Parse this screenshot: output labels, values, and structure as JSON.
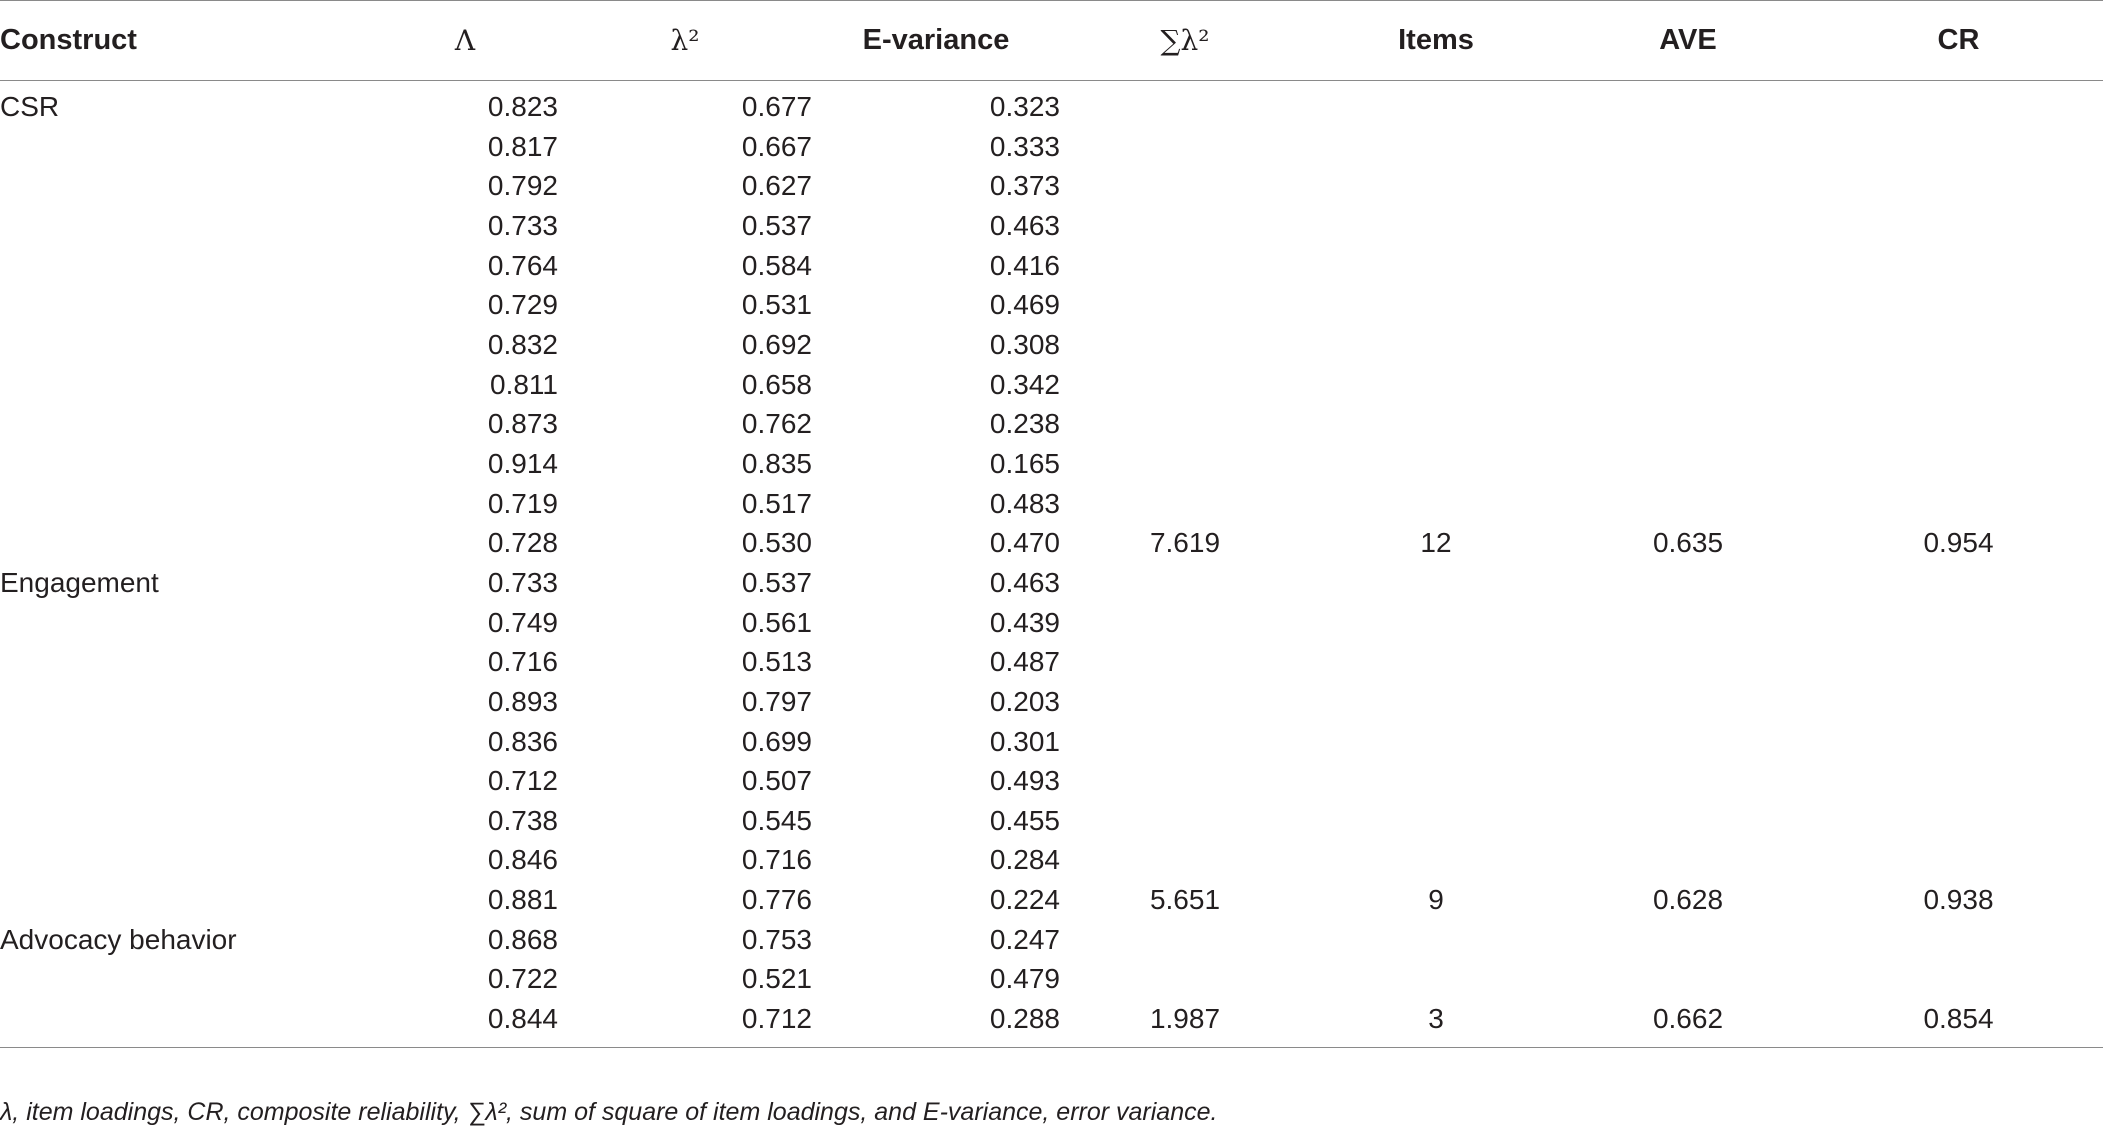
{
  "table": {
    "headers": [
      "Construct",
      "Λ",
      "λ²",
      "E-variance",
      "∑λ²",
      "Items",
      "AVE",
      "CR"
    ],
    "rows": [
      {
        "construct": "CSR",
        "lambda": "0.823",
        "lambda_sq": "0.677",
        "e_variance": "0.323",
        "sum_lambda_sq": "",
        "items": "",
        "ave": "",
        "cr": ""
      },
      {
        "construct": "",
        "lambda": "0.817",
        "lambda_sq": "0.667",
        "e_variance": "0.333",
        "sum_lambda_sq": "",
        "items": "",
        "ave": "",
        "cr": ""
      },
      {
        "construct": "",
        "lambda": "0.792",
        "lambda_sq": "0.627",
        "e_variance": "0.373",
        "sum_lambda_sq": "",
        "items": "",
        "ave": "",
        "cr": ""
      },
      {
        "construct": "",
        "lambda": "0.733",
        "lambda_sq": "0.537",
        "e_variance": "0.463",
        "sum_lambda_sq": "",
        "items": "",
        "ave": "",
        "cr": ""
      },
      {
        "construct": "",
        "lambda": "0.764",
        "lambda_sq": "0.584",
        "e_variance": "0.416",
        "sum_lambda_sq": "",
        "items": "",
        "ave": "",
        "cr": ""
      },
      {
        "construct": "",
        "lambda": "0.729",
        "lambda_sq": "0.531",
        "e_variance": "0.469",
        "sum_lambda_sq": "",
        "items": "",
        "ave": "",
        "cr": ""
      },
      {
        "construct": "",
        "lambda": "0.832",
        "lambda_sq": "0.692",
        "e_variance": "0.308",
        "sum_lambda_sq": "",
        "items": "",
        "ave": "",
        "cr": ""
      },
      {
        "construct": "",
        "lambda": "0.811",
        "lambda_sq": "0.658",
        "e_variance": "0.342",
        "sum_lambda_sq": "",
        "items": "",
        "ave": "",
        "cr": ""
      },
      {
        "construct": "",
        "lambda": "0.873",
        "lambda_sq": "0.762",
        "e_variance": "0.238",
        "sum_lambda_sq": "",
        "items": "",
        "ave": "",
        "cr": ""
      },
      {
        "construct": "",
        "lambda": "0.914",
        "lambda_sq": "0.835",
        "e_variance": "0.165",
        "sum_lambda_sq": "",
        "items": "",
        "ave": "",
        "cr": ""
      },
      {
        "construct": "",
        "lambda": "0.719",
        "lambda_sq": "0.517",
        "e_variance": "0.483",
        "sum_lambda_sq": "",
        "items": "",
        "ave": "",
        "cr": ""
      },
      {
        "construct": "",
        "lambda": "0.728",
        "lambda_sq": "0.530",
        "e_variance": "0.470",
        "sum_lambda_sq": "7.619",
        "items": "12",
        "ave": "0.635",
        "cr": "0.954"
      },
      {
        "construct": "Engagement",
        "lambda": "0.733",
        "lambda_sq": "0.537",
        "e_variance": "0.463",
        "sum_lambda_sq": "",
        "items": "",
        "ave": "",
        "cr": ""
      },
      {
        "construct": "",
        "lambda": "0.749",
        "lambda_sq": "0.561",
        "e_variance": "0.439",
        "sum_lambda_sq": "",
        "items": "",
        "ave": "",
        "cr": ""
      },
      {
        "construct": "",
        "lambda": "0.716",
        "lambda_sq": "0.513",
        "e_variance": "0.487",
        "sum_lambda_sq": "",
        "items": "",
        "ave": "",
        "cr": ""
      },
      {
        "construct": "",
        "lambda": "0.893",
        "lambda_sq": "0.797",
        "e_variance": "0.203",
        "sum_lambda_sq": "",
        "items": "",
        "ave": "",
        "cr": ""
      },
      {
        "construct": "",
        "lambda": "0.836",
        "lambda_sq": "0.699",
        "e_variance": "0.301",
        "sum_lambda_sq": "",
        "items": "",
        "ave": "",
        "cr": ""
      },
      {
        "construct": "",
        "lambda": "0.712",
        "lambda_sq": "0.507",
        "e_variance": "0.493",
        "sum_lambda_sq": "",
        "items": "",
        "ave": "",
        "cr": ""
      },
      {
        "construct": "",
        "lambda": "0.738",
        "lambda_sq": "0.545",
        "e_variance": "0.455",
        "sum_lambda_sq": "",
        "items": "",
        "ave": "",
        "cr": ""
      },
      {
        "construct": "",
        "lambda": "0.846",
        "lambda_sq": "0.716",
        "e_variance": "0.284",
        "sum_lambda_sq": "",
        "items": "",
        "ave": "",
        "cr": ""
      },
      {
        "construct": "",
        "lambda": "0.881",
        "lambda_sq": "0.776",
        "e_variance": "0.224",
        "sum_lambda_sq": "5.651",
        "items": "9",
        "ave": "0.628",
        "cr": "0.938"
      },
      {
        "construct": "Advocacy behavior",
        "lambda": "0.868",
        "lambda_sq": "0.753",
        "e_variance": "0.247",
        "sum_lambda_sq": "",
        "items": "",
        "ave": "",
        "cr": ""
      },
      {
        "construct": "",
        "lambda": "0.722",
        "lambda_sq": "0.521",
        "e_variance": "0.479",
        "sum_lambda_sq": "",
        "items": "",
        "ave": "",
        "cr": ""
      },
      {
        "construct": "",
        "lambda": "0.844",
        "lambda_sq": "0.712",
        "e_variance": "0.288",
        "sum_lambda_sq": "1.987",
        "items": "3",
        "ave": "0.662",
        "cr": "0.854"
      }
    ]
  },
  "footnote": "λ, item loadings, CR, composite reliability, ∑λ², sum of square of item loadings, and E-variance, error variance."
}
